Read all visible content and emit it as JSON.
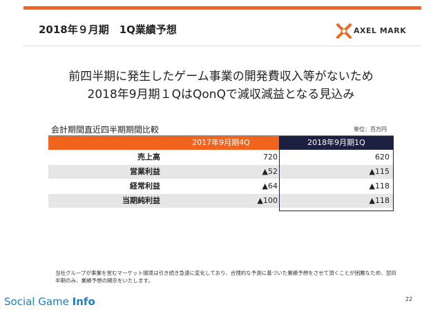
{
  "slide": {
    "title": "2018年９月期　1Q業績予想",
    "logo_text": "AXEL MARK",
    "headline_line1": "前四半期に発生したゲーム事業の開発費収入等がないため",
    "headline_line2": "2018年9月期１QはQonQで減収減益となる見込み",
    "accent_color": "#f0641e",
    "navy_color": "#1c2142"
  },
  "table": {
    "section_label": "会計期間直近四半期期間比較",
    "unit": "単位：百万円",
    "col_prev": "2017年9月期4Q",
    "col_curr": "2018年9月期1Q",
    "rows": [
      {
        "label": "売上高",
        "prev": "720",
        "curr": "620"
      },
      {
        "label": "営業利益",
        "prev": "▲52",
        "curr": "▲115"
      },
      {
        "label": "経常利益",
        "prev": "▲64",
        "curr": "▲118"
      },
      {
        "label": "当期純利益",
        "prev": "▲100",
        "curr": "▲118"
      }
    ]
  },
  "footnote": "当社グループが事業を営むマーケット環境は引き続き急速に変化しており、合理的な予測に基づいた業績予想をさせて頂くことが困難なため、翌四半期のみ、業績予想の開示をいたします。",
  "watermark": {
    "part1": "Social Game ",
    "part2": "Info"
  },
  "page_number": "22"
}
